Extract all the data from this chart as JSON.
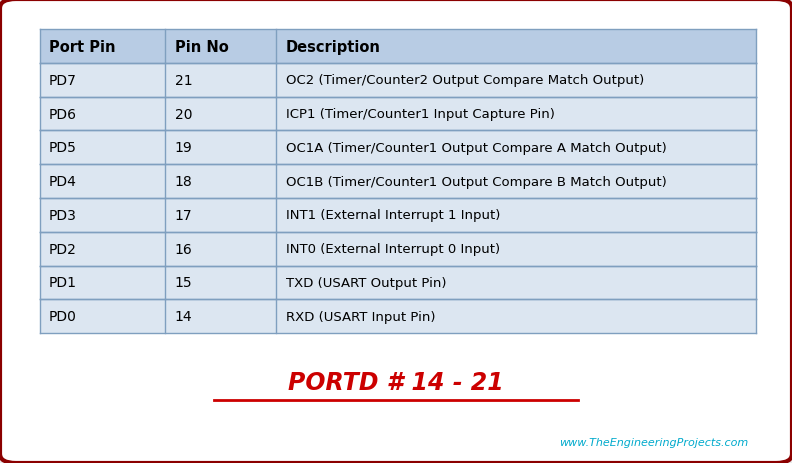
{
  "headers": [
    "Port Pin",
    "Pin No",
    "Description"
  ],
  "rows": [
    [
      "PD7",
      "21",
      "OC2 (Timer/Counter2 Output Compare Match Output)"
    ],
    [
      "PD6",
      "20",
      "ICP1 (Timer/Counter1 Input Capture Pin)"
    ],
    [
      "PD5",
      "19",
      "OC1A (Timer/Counter1 Output Compare A Match Output)"
    ],
    [
      "PD4",
      "18",
      "OC1B (Timer/Counter1 Output Compare B Match Output)"
    ],
    [
      "PD3",
      "17",
      "INT1 (External Interrupt 1 Input)"
    ],
    [
      "PD2",
      "16",
      "INT0 (External Interrupt 0 Input)"
    ],
    [
      "PD1",
      "15",
      "TXD (USART Output Pin)"
    ],
    [
      "PD0",
      "14",
      "RXD (USART Input Pin)"
    ]
  ],
  "header_bg": "#b8cce4",
  "row_bg": "#dce6f1",
  "border_color": "#7f9fbf",
  "outer_border_color": "#8b0000",
  "text_color": "#000000",
  "title_text": "PORTD # 14 - 21",
  "title_color": "#cc0000",
  "watermark_text": "www.TheEngineeringProjects.com",
  "watermark_color": "#00aacc",
  "background_color": "#ffffff",
  "fig_bg": "#e8e8e8"
}
